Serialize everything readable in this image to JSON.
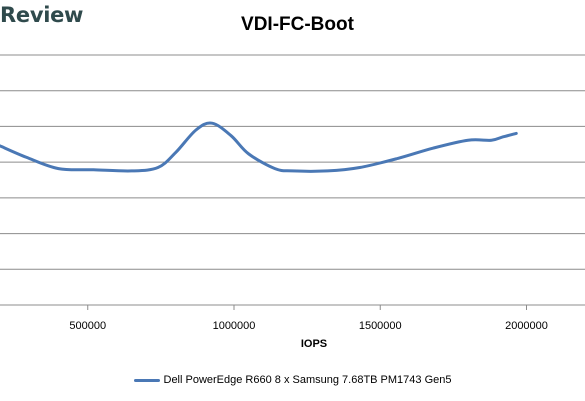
{
  "brand": "Review",
  "chart_data": {
    "type": "line",
    "title": "VDI-FC-Boot",
    "xlabel": "IOPS",
    "ylabel": "",
    "xlim": [
      200000,
      2200000
    ],
    "ylim": [
      0,
      2.2
    ],
    "grid": true,
    "x_ticks": [
      "500000",
      "1000000",
      "1500000",
      "2000000"
    ],
    "x_tick_values": [
      500000,
      1000000,
      1500000,
      2000000
    ],
    "legend_position": "bottom",
    "series": [
      {
        "name": "Dell PowerEdge R660 8 x Samsung 7.68TB PM1743 Gen5",
        "color": "#4a78b5",
        "x": [
          200000,
          290000,
          400000,
          520000,
          650000,
          740000,
          800000,
          870000,
          925000,
          990000,
          1050000,
          1140000,
          1200000,
          1320000,
          1430000,
          1560000,
          1680000,
          1800000,
          1880000,
          1920000,
          1965000
        ],
        "y": [
          1.4,
          1.3,
          1.2,
          1.19,
          1.18,
          1.21,
          1.34,
          1.54,
          1.6,
          1.49,
          1.33,
          1.2,
          1.18,
          1.18,
          1.21,
          1.29,
          1.38,
          1.45,
          1.45,
          1.48,
          1.51
        ]
      }
    ]
  }
}
